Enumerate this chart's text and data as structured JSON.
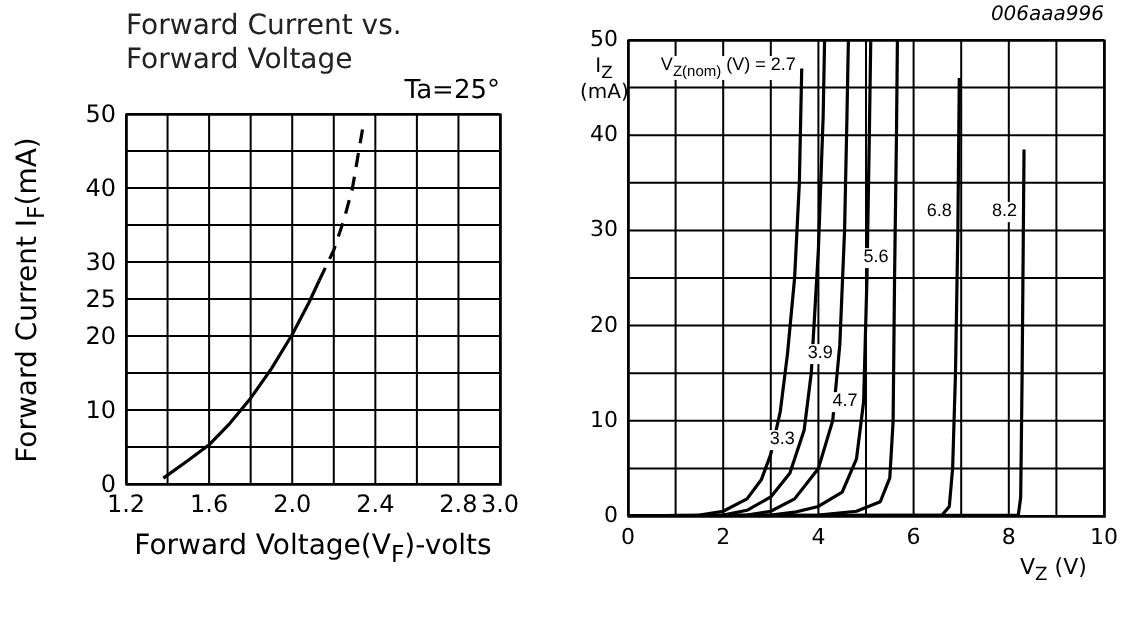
{
  "chart_data": [
    {
      "type": "line",
      "title": "Forward Current vs.\nForward Voltage",
      "xlabel": "Forward Voltage(V$_{F}$)-volts",
      "ylabel": "Forward Current I$_{F}$(mA)",
      "annotations": [
        "Ta=25°"
      ],
      "xlim": [
        1.2,
        3.0
      ],
      "xticks": [
        1.2,
        {
          "value": 1.4,
          "label": null
        },
        1.6,
        {
          "value": 1.8,
          "label": null
        },
        {
          "value": 2.0,
          "label": "2.0"
        },
        {
          "value": 2.2,
          "label": null
        },
        2.4,
        {
          "value": 2.6,
          "label": null
        },
        2.8,
        {
          "value": 3.0,
          "label": "3.0"
        }
      ],
      "ylim": [
        0,
        50
      ],
      "yticks": [
        0,
        {
          "value": 5,
          "label": null
        },
        10,
        {
          "value": 15,
          "label": null
        },
        20,
        25,
        30,
        {
          "value": 35,
          "label": null
        },
        40,
        {
          "value": 45,
          "label": null
        },
        50
      ],
      "grid": true,
      "marker": "none",
      "series": [
        {
          "color": "#000000",
          "line_style": "solid",
          "x": [
            1.38,
            1.5,
            1.6,
            1.7,
            1.8,
            1.9,
            2.0,
            2.08,
            2.13
          ],
          "values": [
            0.8,
            3.2,
            5.3,
            8.2,
            11.6,
            15.6,
            20.2,
            24.5,
            27.5
          ]
        },
        {
          "color": "#000000",
          "line_style": "dashed",
          "x": [
            2.13,
            2.2,
            2.25,
            2.29,
            2.34
          ],
          "values": [
            27.5,
            31.6,
            35.8,
            40,
            48.2
          ]
        }
      ]
    },
    {
      "type": "line",
      "xlabel": "V$_{Z}$ (V)",
      "ylabel": "I$_{Z}$ (mA)",
      "annotations": [
        "006aaa996",
        {
          "text": "V$_{Z(nom)}$ (V) = 2.7",
          "x": 3.65,
          "y": 47
        },
        {
          "text": "3.3",
          "x": 3.63,
          "y": 8
        },
        {
          "text": "3.9",
          "x": 4.43,
          "y": 17
        },
        {
          "text": "4.7",
          "x": 4.95,
          "y": 12
        },
        {
          "text": "5.6",
          "x": 5.6,
          "y": 27
        },
        {
          "text": "6.8",
          "x": 6.93,
          "y": 32
        },
        {
          "text": "8.2",
          "x": 8.3,
          "y": 32
        }
      ],
      "xlim": [
        0,
        10
      ],
      "xticks": [
        0,
        {
          "value": 1,
          "label": null
        },
        2,
        {
          "value": 3,
          "label": null
        },
        4,
        {
          "value": 5,
          "label": null
        },
        6,
        {
          "value": 7,
          "label": null
        },
        8,
        {
          "value": 9,
          "label": null
        },
        10
      ],
      "ylim": [
        0,
        50
      ],
      "yticks": [
        0,
        {
          "value": 5,
          "label": null
        },
        10,
        {
          "value": 15,
          "label": null
        },
        20,
        {
          "value": 25,
          "label": null
        },
        30,
        {
          "value": 35,
          "label": null
        },
        40,
        {
          "value": 45,
          "label": null
        },
        50
      ],
      "grid": true,
      "marker": "none",
      "series": [
        {
          "color": "#000000",
          "line_style": "solid",
          "x": [
            0,
            1.5,
            2,
            2.5,
            2.8,
            3.0,
            3.2,
            3.35,
            3.5,
            3.6,
            3.65
          ],
          "values": [
            0,
            0.1,
            0.5,
            1.8,
            3.8,
            6.5,
            11,
            17,
            25,
            35,
            47
          ]
        },
        {
          "color": "#000000",
          "line_style": "solid",
          "x": [
            0,
            2,
            2.5,
            3,
            3.4,
            3.7,
            3.85,
            4.0,
            4.1,
            4.13
          ],
          "values": [
            0,
            0.1,
            0.6,
            2,
            4.5,
            9,
            15,
            28,
            42,
            50
          ]
        },
        {
          "color": "#000000",
          "line_style": "solid",
          "x": [
            0,
            2.5,
            3,
            3.5,
            4,
            4.3,
            4.45,
            4.55,
            4.6,
            4.63
          ],
          "values": [
            0,
            0.1,
            0.5,
            1.8,
            5,
            10,
            18,
            30,
            42,
            50
          ]
        },
        {
          "color": "#000000",
          "line_style": "solid",
          "x": [
            0,
            3,
            3.5,
            4,
            4.5,
            4.8,
            4.95,
            5.02,
            5.07,
            5.1
          ],
          "values": [
            0,
            0.1,
            0.4,
            1,
            2.5,
            6,
            12,
            25,
            40,
            50
          ]
        },
        {
          "color": "#000000",
          "line_style": "solid",
          "x": [
            0,
            4,
            4.8,
            5.3,
            5.5,
            5.57,
            5.6,
            5.64,
            5.66
          ],
          "values": [
            0,
            0.1,
            0.5,
            1.5,
            4,
            10,
            25,
            40,
            50
          ]
        },
        {
          "color": "#000000",
          "line_style": "solid",
          "x": [
            0,
            6.6,
            6.75,
            6.82,
            6.88,
            6.93,
            6.96
          ],
          "values": [
            0,
            0.1,
            1,
            5,
            15,
            30,
            46
          ]
        },
        {
          "color": "#000000",
          "line_style": "solid",
          "x": [
            0,
            8.2,
            8.25,
            8.28,
            8.32
          ],
          "values": [
            0,
            0.1,
            2,
            15,
            38.5
          ]
        }
      ]
    }
  ]
}
